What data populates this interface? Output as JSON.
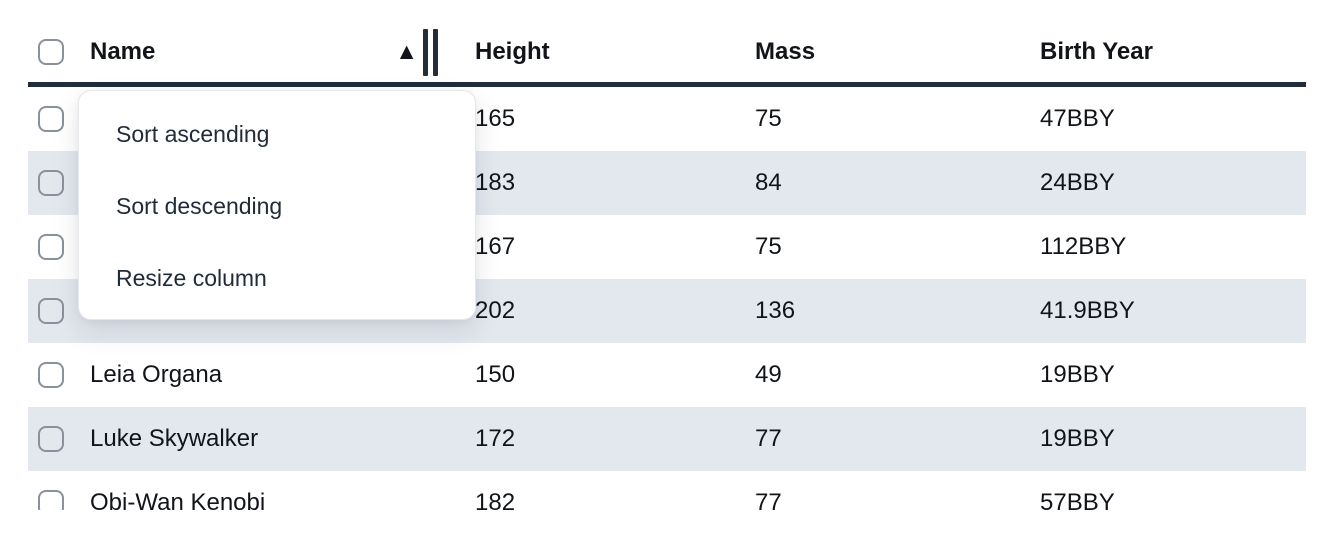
{
  "colors": {
    "dark": "#222c3b",
    "text": "#111419",
    "menu_text": "#212b3a",
    "stripe": "#e3e8ef",
    "checkbox_border": "#8a919c",
    "menu_border": "#e7e7ec",
    "page_bg": "#ffffff"
  },
  "table": {
    "sort_indicator": "▲",
    "columns": [
      {
        "label": "Name"
      },
      {
        "label": "Height"
      },
      {
        "label": "Mass"
      },
      {
        "label": "Birth Year"
      }
    ],
    "rows": [
      {
        "name": "",
        "height": "165",
        "mass": "75",
        "birth_year": "47BBY"
      },
      {
        "name": "",
        "height": "183",
        "mass": "84",
        "birth_year": "24BBY"
      },
      {
        "name": "",
        "height": "167",
        "mass": "75",
        "birth_year": "112BBY"
      },
      {
        "name": "",
        "height": "202",
        "mass": "136",
        "birth_year": "41.9BBY"
      },
      {
        "name": "Leia Organa",
        "height": "150",
        "mass": "49",
        "birth_year": "19BBY"
      },
      {
        "name": "Luke Skywalker",
        "height": "172",
        "mass": "77",
        "birth_year": "19BBY"
      },
      {
        "name": "Obi-Wan Kenobi",
        "height": "182",
        "mass": "77",
        "birth_year": "57BBY"
      }
    ]
  },
  "context_menu": {
    "items": [
      {
        "label": "Sort ascending"
      },
      {
        "label": "Sort descending"
      },
      {
        "label": "Resize column"
      }
    ]
  }
}
